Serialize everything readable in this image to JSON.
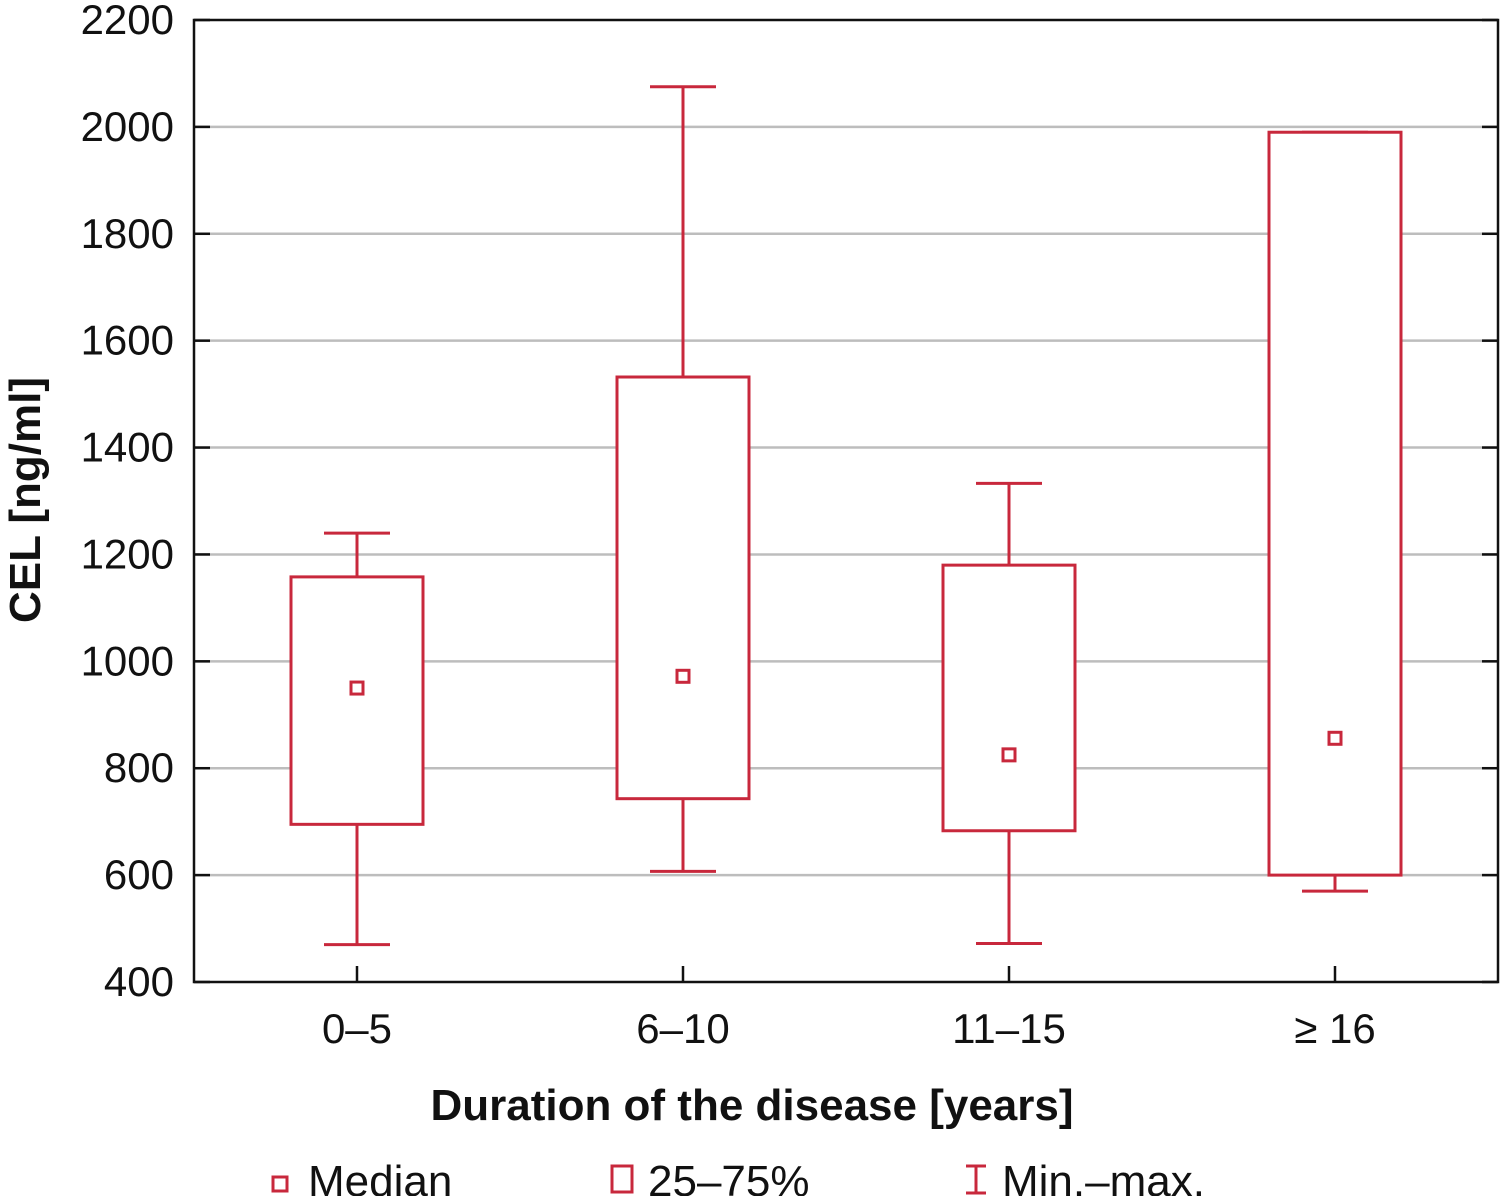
{
  "chart_data": {
    "type": "boxplot",
    "title": "",
    "xlabel": "Duration of the disease [years]",
    "ylabel": "CEL [ng/ml]",
    "ylim": [
      400,
      2200
    ],
    "yticks": [
      400,
      600,
      800,
      1000,
      1200,
      1400,
      1600,
      1800,
      2000,
      2200
    ],
    "grid": true,
    "categories": [
      "0–5",
      "6–10",
      "11–15",
      "≥ 16"
    ],
    "boxes": [
      {
        "category": "0–5",
        "min": 470,
        "q1": 695,
        "median": 950,
        "q3": 1158,
        "max": 1240
      },
      {
        "category": "6–10",
        "min": 607,
        "q1": 743,
        "median": 972,
        "q3": 1532,
        "max": 2075
      },
      {
        "category": "11–15",
        "min": 472,
        "q1": 683,
        "median": 825,
        "q3": 1180,
        "max": 1333
      },
      {
        "category": "≥ 16",
        "min": 570,
        "q1": 600,
        "median": 856,
        "q3": 1990,
        "max": 1990
      }
    ],
    "legend": {
      "position": "bottom",
      "items": [
        "Median",
        "25–75%",
        "Min.–max."
      ]
    },
    "colors": {
      "series": "#c8283c",
      "grid": "#bdbdbd",
      "axis": "#111111"
    }
  }
}
